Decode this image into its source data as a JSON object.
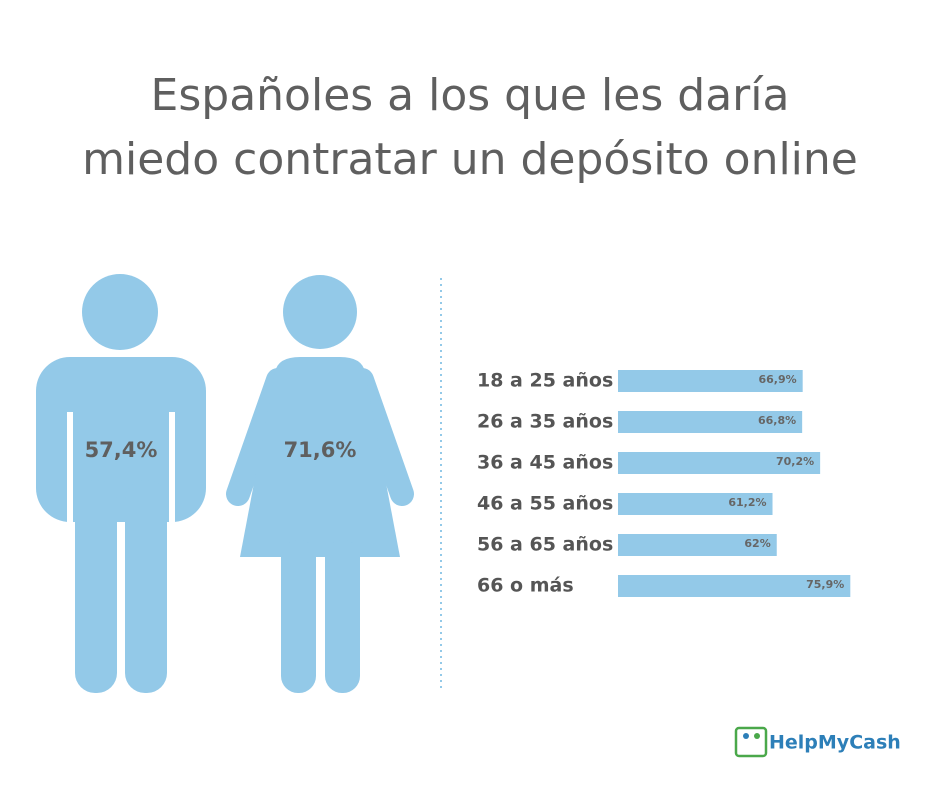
{
  "chart_data": [
    {
      "type": "pictogram",
      "title": "Españoles a los que les daría miedo contratar un depósito online",
      "values": [
        57.4,
        71.6
      ],
      "value_labels": [
        "57,4%",
        "71,6%"
      ],
      "color": "#93c9e8"
    },
    {
      "type": "bar",
      "orientation": "horizontal",
      "categories": [
        "18 a 25 años",
        "26 a 35 años",
        "36 a 45 años",
        "46 a 55 años",
        "56 a 65 años",
        "66 o más"
      ],
      "values": [
        66.9,
        66.8,
        70.2,
        61.2,
        62,
        75.9
      ],
      "value_labels": [
        "66,9%",
        "66,8%",
        "70,2%",
        "61,2%",
        "62%",
        "75,9%"
      ],
      "xlim": [
        32,
        80
      ],
      "color": "#93c9e8"
    }
  ],
  "logo": "HelpMyCash"
}
